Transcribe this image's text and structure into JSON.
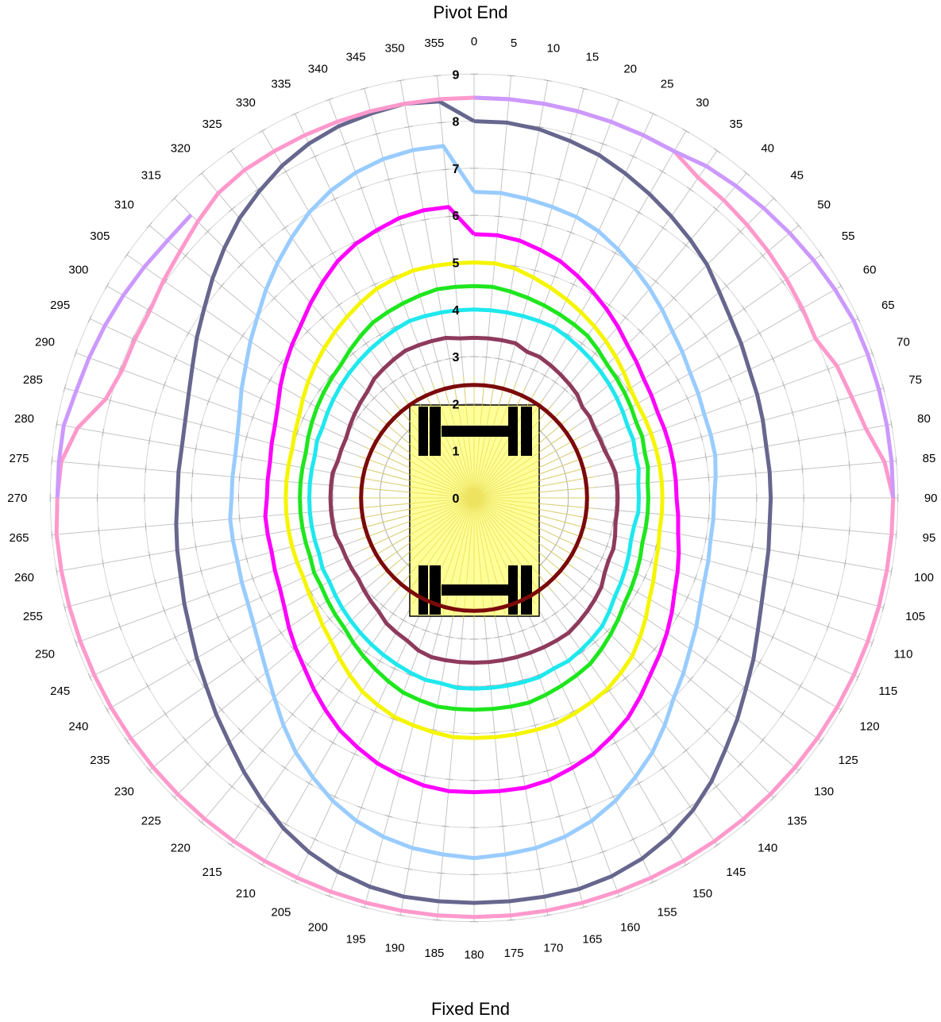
{
  "top_label": "Pivot End",
  "bottom_label": "Fixed End",
  "chart_data": {
    "type": "polar_line",
    "angles": [
      0,
      5,
      10,
      15,
      20,
      25,
      30,
      35,
      40,
      45,
      50,
      55,
      60,
      65,
      70,
      75,
      80,
      85,
      90,
      95,
      100,
      105,
      110,
      115,
      120,
      125,
      130,
      135,
      140,
      145,
      150,
      155,
      160,
      165,
      170,
      175,
      180,
      185,
      190,
      195,
      200,
      205,
      210,
      215,
      220,
      225,
      230,
      235,
      240,
      245,
      250,
      255,
      260,
      265,
      270,
      275,
      280,
      285,
      290,
      295,
      300,
      305,
      310,
      315,
      320,
      325,
      330,
      335,
      340,
      345,
      350,
      355
    ],
    "radial_ticks": [
      0,
      1,
      2,
      3,
      4,
      5,
      6,
      7,
      8,
      9
    ],
    "rlim": [
      0,
      9
    ],
    "direction": "clockwise",
    "zero_at": "top",
    "series": [
      {
        "color": "#7b0a0a",
        "values": [
          2.4,
          2.4,
          2.4,
          2.4,
          2.4,
          2.4,
          2.4,
          2.4,
          2.4,
          2.4,
          2.4,
          2.4,
          2.4,
          2.4,
          2.4,
          2.4,
          2.4,
          2.4,
          2.4,
          2.4,
          2.4,
          2.4,
          2.4,
          2.4,
          2.4,
          2.4,
          2.4,
          2.4,
          2.4,
          2.4,
          2.4,
          2.4,
          2.4,
          2.4,
          2.4,
          2.4,
          2.4,
          2.4,
          2.4,
          2.4,
          2.4,
          2.4,
          2.4,
          2.4,
          2.4,
          2.4,
          2.4,
          2.4,
          2.4,
          2.4,
          2.4,
          2.4,
          2.4,
          2.4,
          2.4,
          2.4,
          2.4,
          2.4,
          2.4,
          2.4,
          2.4,
          2.4,
          2.4,
          2.4,
          2.4,
          2.4,
          2.4,
          2.4,
          2.4,
          2.4,
          2.4,
          2.4
        ]
      },
      {
        "color": "#8e3a5c",
        "values": [
          3.4,
          3.4,
          3.4,
          3.4,
          3.3,
          3.3,
          3.25,
          3.2,
          3.15,
          3.1,
          3.0,
          3.0,
          2.95,
          2.95,
          2.95,
          3.0,
          3.05,
          3.05,
          3.05,
          3.05,
          3.05,
          3.1,
          3.15,
          3.15,
          3.2,
          3.3,
          3.35,
          3.4,
          3.45,
          3.5,
          3.5,
          3.5,
          3.5,
          3.5,
          3.5,
          3.5,
          3.5,
          3.5,
          3.5,
          3.5,
          3.45,
          3.35,
          3.3,
          3.25,
          3.15,
          3.1,
          3.05,
          3.0,
          3.0,
          3.0,
          3.0,
          3.05,
          3.05,
          3.05,
          3.05,
          3.05,
          3.05,
          3.0,
          3.0,
          3.0,
          3.05,
          3.1,
          3.15,
          3.2,
          3.3,
          3.35,
          3.4,
          3.45,
          3.45,
          3.45,
          3.45,
          3.4
        ]
      },
      {
        "color": "#1ee8ee",
        "values": [
          4.0,
          4.0,
          4.0,
          4.0,
          4.0,
          4.0,
          3.95,
          3.9,
          3.85,
          3.8,
          3.75,
          3.7,
          3.65,
          3.6,
          3.6,
          3.55,
          3.55,
          3.5,
          3.5,
          3.5,
          3.45,
          3.45,
          3.5,
          3.55,
          3.6,
          3.65,
          3.75,
          3.85,
          3.9,
          3.95,
          4.0,
          4.0,
          4.05,
          4.05,
          4.05,
          4.05,
          4.05,
          4.05,
          4.0,
          4.0,
          3.95,
          3.9,
          3.85,
          3.8,
          3.75,
          3.7,
          3.65,
          3.6,
          3.55,
          3.55,
          3.5,
          3.5,
          3.5,
          3.5,
          3.5,
          3.5,
          3.5,
          3.5,
          3.55,
          3.55,
          3.6,
          3.65,
          3.7,
          3.75,
          3.8,
          3.85,
          3.9,
          3.95,
          4.0,
          4.0,
          4.0,
          4.0
        ]
      },
      {
        "color": "#1ee61e",
        "values": [
          4.5,
          4.5,
          4.45,
          4.4,
          4.35,
          4.3,
          4.25,
          4.2,
          4.1,
          4.0,
          3.95,
          3.9,
          3.85,
          3.8,
          3.8,
          3.75,
          3.75,
          3.7,
          3.7,
          3.7,
          3.7,
          3.7,
          3.75,
          3.8,
          3.85,
          3.9,
          4.0,
          4.1,
          4.2,
          4.3,
          4.35,
          4.4,
          4.45,
          4.5,
          4.5,
          4.5,
          4.5,
          4.5,
          4.5,
          4.45,
          4.4,
          4.3,
          4.2,
          4.1,
          4.0,
          3.9,
          3.85,
          3.8,
          3.75,
          3.75,
          3.7,
          3.7,
          3.7,
          3.7,
          3.7,
          3.7,
          3.7,
          3.7,
          3.75,
          3.8,
          3.85,
          3.9,
          3.95,
          4.0,
          4.1,
          4.2,
          4.3,
          4.35,
          4.4,
          4.45,
          4.5,
          4.5
        ]
      },
      {
        "color": "#f5f500",
        "values": [
          5.0,
          5.0,
          4.95,
          4.85,
          4.75,
          4.65,
          4.55,
          4.45,
          4.35,
          4.25,
          4.15,
          4.05,
          4.0,
          4.0,
          4.0,
          4.0,
          4.0,
          4.0,
          4.0,
          4.0,
          4.0,
          4.05,
          4.1,
          4.2,
          4.3,
          4.45,
          4.6,
          4.75,
          4.85,
          4.95,
          5.0,
          5.05,
          5.1,
          5.1,
          5.1,
          5.1,
          5.1,
          5.1,
          5.05,
          5.0,
          4.95,
          4.85,
          4.75,
          4.6,
          4.45,
          4.3,
          4.2,
          4.1,
          4.05,
          4.0,
          4.0,
          4.0,
          4.0,
          4.0,
          4.0,
          4.0,
          4.0,
          4.0,
          4.05,
          4.1,
          4.2,
          4.3,
          4.4,
          4.5,
          4.6,
          4.7,
          4.8,
          4.9,
          4.95,
          5.0,
          5.0,
          5.0
        ]
      },
      {
        "color": "#ff00ff",
        "values": [
          5.6,
          5.6,
          5.55,
          5.45,
          5.35,
          5.2,
          5.05,
          4.9,
          4.75,
          4.6,
          4.5,
          4.4,
          4.35,
          4.3,
          4.3,
          4.3,
          4.3,
          4.3,
          4.3,
          4.35,
          4.4,
          4.5,
          4.6,
          4.7,
          4.85,
          5.0,
          5.15,
          5.3,
          5.5,
          5.7,
          5.85,
          6.0,
          6.1,
          6.2,
          6.25,
          6.25,
          6.25,
          6.25,
          6.2,
          6.1,
          6.0,
          5.85,
          5.7,
          5.5,
          5.3,
          5.1,
          4.95,
          4.8,
          4.65,
          4.55,
          4.5,
          4.45,
          4.45,
          4.45,
          4.4,
          4.4,
          4.4,
          4.45,
          4.5,
          4.6,
          4.75,
          4.9,
          5.05,
          5.2,
          5.4,
          5.6,
          5.8,
          5.95,
          6.05,
          6.15,
          6.2,
          6.2
        ]
      },
      {
        "color": "#99ccff",
        "values": [
          6.5,
          6.5,
          6.45,
          6.4,
          6.35,
          6.25,
          6.1,
          5.95,
          5.8,
          5.65,
          5.5,
          5.4,
          5.3,
          5.25,
          5.2,
          5.2,
          5.2,
          5.15,
          5.1,
          5.1,
          5.1,
          5.15,
          5.2,
          5.3,
          5.45,
          5.6,
          5.8,
          6.0,
          6.3,
          6.6,
          6.85,
          7.1,
          7.3,
          7.45,
          7.55,
          7.6,
          7.65,
          7.6,
          7.55,
          7.45,
          7.3,
          7.1,
          6.85,
          6.6,
          6.3,
          6.0,
          5.75,
          5.55,
          5.4,
          5.3,
          5.25,
          5.2,
          5.2,
          5.2,
          5.15,
          5.15,
          5.15,
          5.2,
          5.3,
          5.45,
          5.6,
          5.8,
          6.0,
          6.25,
          6.5,
          6.75,
          7.0,
          7.2,
          7.35,
          7.45,
          7.5,
          7.5
        ]
      },
      {
        "color": "#66668e",
        "values": [
          8.0,
          8.0,
          7.95,
          7.85,
          7.75,
          7.6,
          7.45,
          7.3,
          7.15,
          7.0,
          6.8,
          6.65,
          6.55,
          6.45,
          6.4,
          6.35,
          6.3,
          6.3,
          6.3,
          6.3,
          6.35,
          6.4,
          6.5,
          6.65,
          6.85,
          7.05,
          7.3,
          7.55,
          7.85,
          8.1,
          8.3,
          8.45,
          8.55,
          8.6,
          8.6,
          8.6,
          8.6,
          8.6,
          8.6,
          8.55,
          8.45,
          8.3,
          8.1,
          7.85,
          7.6,
          7.35,
          7.15,
          6.95,
          6.8,
          6.65,
          6.55,
          6.45,
          6.4,
          6.35,
          6.3,
          6.3,
          6.3,
          6.35,
          6.45,
          6.6,
          6.8,
          7.0,
          7.25,
          7.5,
          7.75,
          7.95,
          8.15,
          8.3,
          8.4,
          8.45,
          8.5,
          8.45
        ]
      },
      {
        "color": "#ff99cc",
        "values": [
          8.5,
          8.5,
          8.5,
          8.5,
          8.5,
          8.5,
          8.5,
          8.3,
          8.25,
          8.2,
          8.15,
          8.1,
          8.05,
          8.0,
          8.2,
          8.3,
          8.45,
          8.75,
          8.9,
          8.9,
          8.9,
          8.9,
          8.9,
          8.9,
          8.9,
          8.9,
          8.9,
          8.9,
          8.9,
          8.9,
          8.9,
          8.9,
          8.9,
          8.9,
          8.9,
          8.9,
          8.9,
          8.9,
          8.9,
          8.9,
          8.9,
          8.9,
          8.9,
          8.9,
          8.9,
          8.9,
          8.9,
          8.9,
          8.9,
          8.9,
          8.9,
          8.9,
          8.9,
          8.9,
          8.85,
          8.8,
          8.55,
          8.1,
          7.95,
          7.95,
          7.95,
          8.05,
          8.15,
          8.3,
          8.45,
          8.5,
          8.5,
          8.5,
          8.5,
          8.5,
          8.5,
          8.5
        ]
      },
      {
        "color": "#cc99ff",
        "values": [
          8.5,
          8.5,
          8.5,
          8.5,
          8.5,
          8.5,
          8.5,
          8.6,
          8.65,
          8.7,
          8.75,
          8.8,
          8.85,
          8.9,
          8.9,
          8.9,
          8.9,
          8.9,
          8.9,
          null,
          null,
          null,
          null,
          null,
          null,
          null,
          null,
          null,
          null,
          null,
          null,
          null,
          null,
          null,
          null,
          null,
          null,
          null,
          null,
          null,
          null,
          null,
          null,
          null,
          null,
          null,
          null,
          null,
          null,
          null,
          null,
          null,
          null,
          null,
          8.85,
          8.85,
          8.85,
          8.75,
          8.7,
          8.65,
          8.6,
          8.55,
          8.5,
          8.5,
          null,
          null,
          null,
          null,
          null,
          null,
          null,
          null
        ]
      }
    ]
  },
  "vehicle_icon": "overhead-vehicle-icon"
}
